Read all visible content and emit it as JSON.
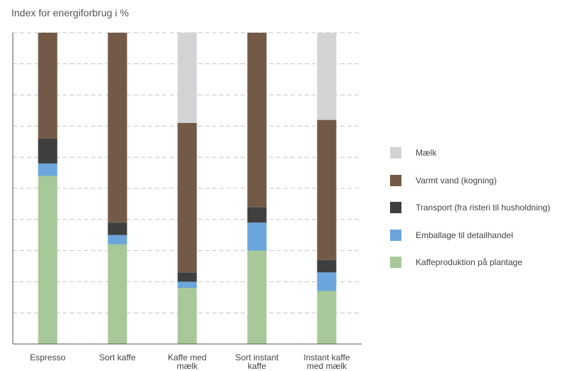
{
  "chart_data": {
    "type": "bar",
    "stacked": true,
    "title": "Index for energiforbrug i %",
    "xlabel": "",
    "ylabel": "",
    "ylim": [
      0,
      100
    ],
    "grid": true,
    "legend_position": "right",
    "categories": [
      [
        "Espresso"
      ],
      [
        "Sort kaffe"
      ],
      [
        "Kaffe med",
        "mælk"
      ],
      [
        "Sort instant",
        "kaffe"
      ],
      [
        "Instant kaffe",
        "med mælk"
      ]
    ],
    "series": [
      {
        "name": "Kaffeproduktion på plantage",
        "color": "#a8c899",
        "values": [
          54,
          32,
          18,
          30,
          17
        ]
      },
      {
        "name": "Emballage til detailhandel",
        "color": "#6aa6dc",
        "values": [
          4,
          3,
          2,
          9,
          6
        ]
      },
      {
        "name": "Transport (fra risteri til husholdning)",
        "color": "#3f3f3f",
        "values": [
          8,
          4,
          3,
          5,
          4
        ]
      },
      {
        "name": "Varmt vand (kogning)",
        "color": "#735a48",
        "values": [
          34,
          61,
          48,
          56,
          45
        ]
      },
      {
        "name": "Mælk",
        "color": "#d2d3d5",
        "values": [
          0,
          0,
          29,
          0,
          28
        ]
      }
    ],
    "legend_order": [
      "Mælk",
      "Varmt vand (kogning)",
      "Transport (fra risteri til husholdning)",
      "Emballage til detailhandel",
      "Kaffeproduktion på plantage"
    ]
  }
}
